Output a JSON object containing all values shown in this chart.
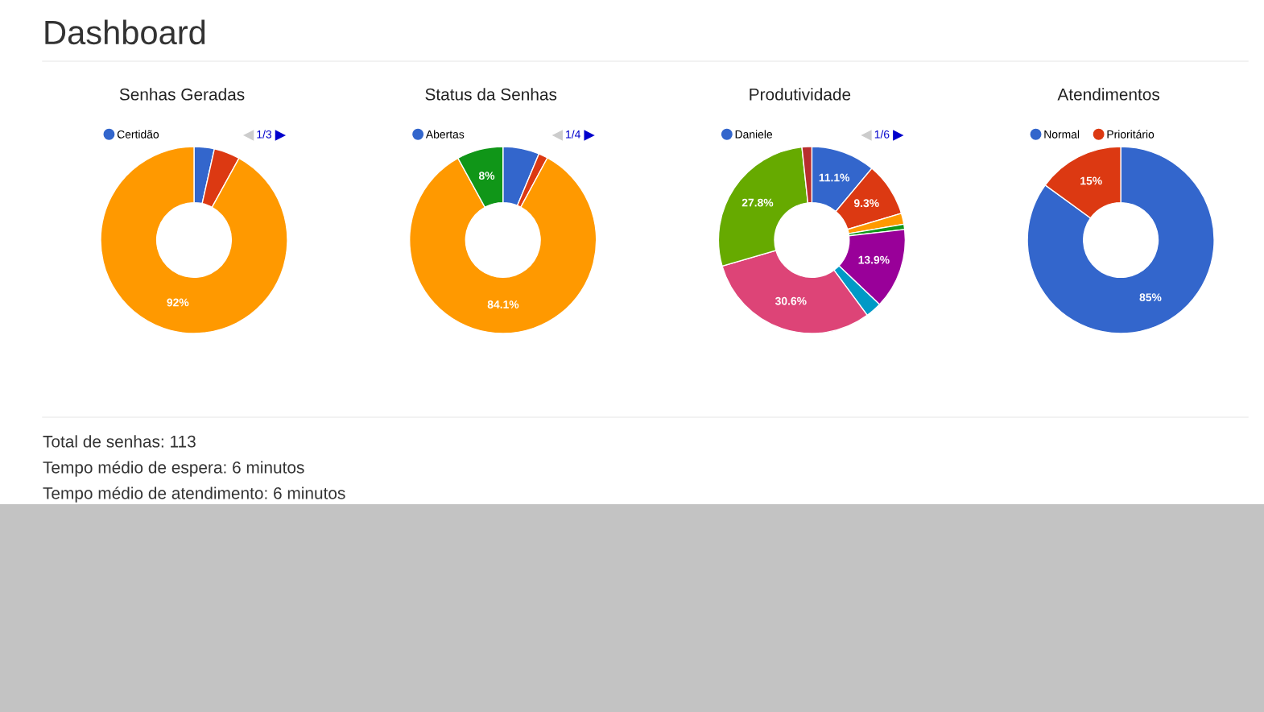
{
  "chart_data": [
    {
      "type": "other",
      "title": "Dashboard"
    },
    {
      "type": "donut",
      "title": "Senhas Geradas",
      "categories": [
        "Certidão",
        null,
        null
      ],
      "values": [
        3.5,
        4.5,
        92
      ],
      "colors": [
        "#3366cc",
        "#dc3912",
        "#ff9900"
      ],
      "value_labels": [
        null,
        null,
        "92%"
      ],
      "legend": "top",
      "annotations": [
        "1/3"
      ]
    },
    {
      "type": "donut",
      "title": "Status da Senhas",
      "categories": [
        "Abertas",
        null,
        null,
        null
      ],
      "values": [
        6.3,
        1.6,
        84.1,
        8
      ],
      "colors": [
        "#3366cc",
        "#dc3912",
        "#ff9900",
        "#109618"
      ],
      "value_labels": [
        null,
        null,
        "84.1%",
        "8%"
      ],
      "legend": "top",
      "annotations": [
        "1/4"
      ]
    },
    {
      "type": "donut",
      "title": "Produtividade",
      "categories": [
        "Daniele",
        null,
        null,
        null,
        null,
        null,
        null,
        null,
        null
      ],
      "values": [
        11.1,
        9.3,
        1.9,
        0.9,
        13.9,
        2.8,
        30.6,
        27.8,
        1.7
      ],
      "colors": [
        "#3366cc",
        "#dc3912",
        "#ff9900",
        "#109618",
        "#990099",
        "#0099c6",
        "#dd4477",
        "#66aa00",
        "#b82e2e"
      ],
      "value_labels": [
        "11.1%",
        "9.3%",
        null,
        null,
        "13.9%",
        null,
        "30.6%",
        "27.8%",
        null
      ],
      "legend": "top",
      "annotations": [
        "1/6"
      ]
    },
    {
      "type": "donut",
      "title": "Atendimentos",
      "categories": [
        "Normal",
        "Prioritário"
      ],
      "values": [
        85,
        15
      ],
      "colors": [
        "#3366cc",
        "#dc3912"
      ],
      "value_labels": [
        "85%",
        "15%"
      ],
      "legend": "top"
    },
    {
      "type": "other",
      "annotations": [
        "Total de senhas: 113",
        "Tempo médio de espera: 6 minutos",
        "Tempo médio de atendimento: 6 minutos"
      ]
    }
  ]
}
